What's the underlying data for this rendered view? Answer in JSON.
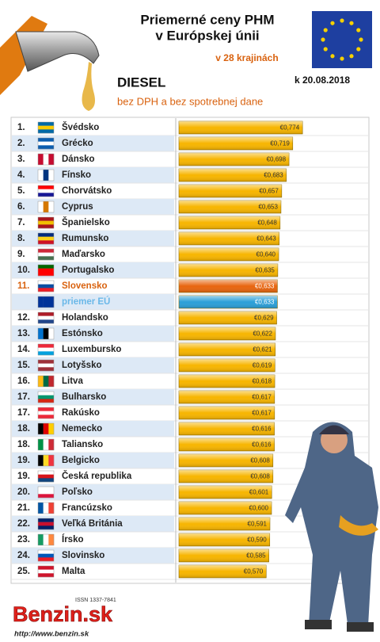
{
  "title_lines": [
    "Priemerné ceny PHM",
    "v Európskej únii"
  ],
  "countries_note": "v 28 krajinách",
  "date": "k 20.08.2018",
  "footer": {
    "issn": "ISSN 1337-7841",
    "logo": "Benzin.sk",
    "url": "http://www.benzin.sk"
  },
  "chart_data": {
    "type": "barh",
    "title": "DIESEL",
    "subtitle": "bez DPH a bez spotrebnej dane",
    "ranks": [
      "1.",
      "2.",
      "3.",
      "4.",
      "5.",
      "6.",
      "7.",
      "8.",
      "9.",
      "10.",
      "11.",
      null,
      "12.",
      "13.",
      "14.",
      "15.",
      "16.",
      "17.",
      "17.",
      "18.",
      "18.",
      "19.",
      "19.",
      "20.",
      "21.",
      "22.",
      "23.",
      "24.",
      "25."
    ],
    "categories": [
      "Švédsko",
      "Grécko",
      "Dánsko",
      "Fínsko",
      "Chorvátsko",
      "Cyprus",
      "Španielsko",
      "Rumunsko",
      "Maďarsko",
      "Portugalsko",
      "Slovensko",
      "priemer EÚ",
      "Holandsko",
      "Estónsko",
      "Luxembursko",
      "Lotyšsko",
      "Litva",
      "Bulharsko",
      "Rakúsko",
      "Nemecko",
      "Taliansko",
      "Belgicko",
      "Česká republika",
      "Poľsko",
      "Francúzsko",
      "Veľká Británia",
      "Írsko",
      "Slovinsko",
      "Malta"
    ],
    "values": [
      0.774,
      0.719,
      0.698,
      0.683,
      0.657,
      0.653,
      0.648,
      0.643,
      0.64,
      0.635,
      0.633,
      0.633,
      0.629,
      0.622,
      0.621,
      0.619,
      0.618,
      0.617,
      0.617,
      0.616,
      0.616,
      0.608,
      0.608,
      0.601,
      0.6,
      0.591,
      0.59,
      0.585,
      0.57
    ],
    "value_labels": [
      "€0,774",
      "€0,719",
      "€0,698",
      "€0,683",
      "€0,657",
      "€0,653",
      "€0,648",
      "€0,643",
      "€0,640",
      "€0,635",
      "€0,633",
      "€0,633",
      "€0,629",
      "€0,622",
      "€0,621",
      "€0,619",
      "€0,618",
      "€0,617",
      "€0,617",
      "€0,616",
      "€0,616",
      "€0,608",
      "€0,608",
      "€0,601",
      "€0,600",
      "€0,591",
      "€0,590",
      "€0,585",
      "€0,570"
    ],
    "bar_colors": [
      "#f7b500",
      "#f7b500",
      "#f7b500",
      "#f7b500",
      "#f7b500",
      "#f7b500",
      "#f7b500",
      "#f7b500",
      "#f7b500",
      "#f7b500",
      "#e8650f",
      "#2b9fd8",
      "#f7b500",
      "#f7b500",
      "#f7b500",
      "#f7b500",
      "#f7b500",
      "#f7b500",
      "#f7b500",
      "#f7b500",
      "#f7b500",
      "#f7b500",
      "#f7b500",
      "#f7b500",
      "#f7b500",
      "#f7b500",
      "#f7b500",
      "#f7b500",
      "#f7b500"
    ],
    "label_colors": [
      "#222",
      "#222",
      "#222",
      "#222",
      "#222",
      "#222",
      "#222",
      "#222",
      "#222",
      "#222",
      "#d9620f",
      "#6ab8e8",
      "#222",
      "#222",
      "#222",
      "#222",
      "#222",
      "#222",
      "#222",
      "#222",
      "#222",
      "#222",
      "#222",
      "#222",
      "#222",
      "#222",
      "#222",
      "#222",
      "#222"
    ],
    "xlim": [
      0.08,
      0.8
    ]
  }
}
